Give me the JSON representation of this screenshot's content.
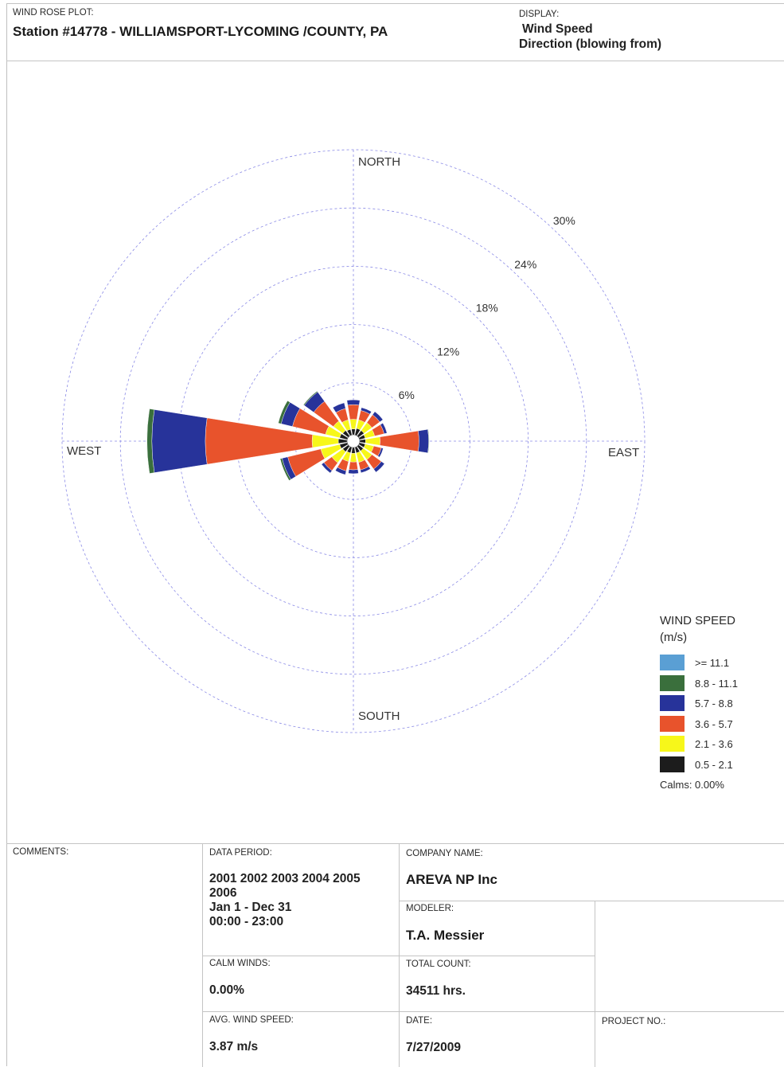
{
  "header": {
    "plot_label": "WIND ROSE PLOT:",
    "station": "Station #14778 - WILLIAMSPORT-LYCOMING /COUNTY, PA",
    "display_label": "DISPLAY:",
    "display_line1": "Wind Speed",
    "display_line2": "Direction (blowing from)"
  },
  "chart_data": {
    "type": "wind-rose",
    "directions": [
      "N",
      "NNE",
      "NE",
      "ENE",
      "E",
      "ESE",
      "SE",
      "SSE",
      "S",
      "SSW",
      "SW",
      "WSW",
      "W",
      "WNW",
      "NW",
      "NNW"
    ],
    "compass_labels": {
      "north": "NORTH",
      "south": "SOUTH",
      "east": "EAST",
      "west": "WEST"
    },
    "ring_labels": [
      "6%",
      "12%",
      "18%",
      "24%",
      "30%"
    ],
    "rings": [
      6,
      12,
      18,
      24,
      30
    ],
    "speed_bins": [
      {
        "label": "0.5 -  2.1",
        "color": "#1c1c1c"
      },
      {
        "label": "2.1 -  3.6",
        "color": "#f7f71a"
      },
      {
        "label": "3.6 -  5.7",
        "color": "#e8532c"
      },
      {
        "label": "5.7 -  8.8",
        "color": "#27339a"
      },
      {
        "label": "8.8 - 11.1",
        "color": "#3a6f3c"
      },
      {
        "label": ">= 11.1",
        "color": "#5a9fd4"
      }
    ],
    "frequencies": [
      [
        0.6,
        1.0,
        1.5,
        0.5,
        0.0,
        0.0
      ],
      [
        0.7,
        0.9,
        1.0,
        0.3,
        0.0,
        0.0
      ],
      [
        0.7,
        1.0,
        1.0,
        0.4,
        0.0,
        0.0
      ],
      [
        0.6,
        1.0,
        1.0,
        0.3,
        0.0,
        0.0
      ],
      [
        0.6,
        1.5,
        4.0,
        1.0,
        0.05,
        0.0
      ],
      [
        0.6,
        0.9,
        0.8,
        0.2,
        0.0,
        0.0
      ],
      [
        0.6,
        1.1,
        1.2,
        0.4,
        0.0,
        0.0
      ],
      [
        0.6,
        1.0,
        0.8,
        0.3,
        0.0,
        0.0
      ],
      [
        0.6,
        0.9,
        0.8,
        0.4,
        0.0,
        0.0
      ],
      [
        0.6,
        0.9,
        1.0,
        0.4,
        0.0,
        0.0
      ],
      [
        0.7,
        1.4,
        1.0,
        0.3,
        0.0,
        0.0
      ],
      [
        0.8,
        2.0,
        3.5,
        0.6,
        0.2,
        0.0
      ],
      [
        0.9,
        2.7,
        11.0,
        5.5,
        0.5,
        0.0
      ],
      [
        0.8,
        1.5,
        3.5,
        1.2,
        0.3,
        0.0
      ],
      [
        0.7,
        1.2,
        2.5,
        1.2,
        0.1,
        0.0
      ],
      [
        0.6,
        1.0,
        1.2,
        0.6,
        0.0,
        0.0
      ]
    ]
  },
  "legend": {
    "title_line1": "WIND SPEED",
    "title_line2": "(m/s)",
    "items": [
      {
        "label": ">= 11.1",
        "color": "#5a9fd4"
      },
      {
        "label": "8.8 - 11.1",
        "color": "#3a6f3c"
      },
      {
        "label": "5.7 -  8.8",
        "color": "#27339a"
      },
      {
        "label": "3.6 -  5.7",
        "color": "#e8532c"
      },
      {
        "label": "2.1 -  3.6",
        "color": "#f7f71a"
      },
      {
        "label": "0.5 -  2.1",
        "color": "#1c1c1c"
      }
    ],
    "calms": "Calms: 0.00%"
  },
  "footer": {
    "comments_label": "COMMENTS:",
    "data_period_label": "DATA PERIOD:",
    "data_period_value": "2001 2002 2003 2004 2005\n2006\nJan 1 - Dec 31\n00:00  -  23:00",
    "company_label": "COMPANY NAME:",
    "company_value": "AREVA NP Inc",
    "modeler_label": "MODELER:",
    "modeler_value": "T.A. Messier",
    "calm_winds_label": "CALM WINDS:",
    "calm_winds_value": "0.00%",
    "total_count_label": "TOTAL COUNT:",
    "total_count_value": "34511 hrs.",
    "avg_speed_label": "AVG. WIND SPEED:",
    "avg_speed_value": "3.87 m/s",
    "date_label": "DATE:",
    "date_value": "7/27/2009",
    "project_label": "PROJECT NO.:"
  }
}
